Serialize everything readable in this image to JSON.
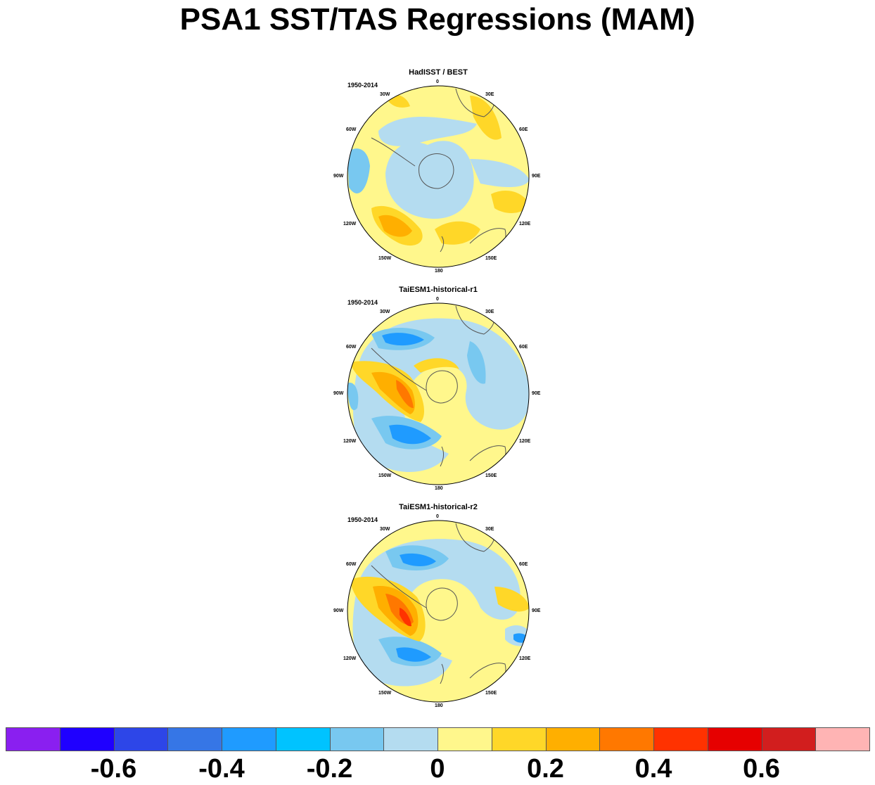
{
  "title": "PSA1 SST/TAS Regressions (MAM)",
  "panels": [
    {
      "title": "HadISST / BEST",
      "period": "1950-2014"
    },
    {
      "title": "TaiESM1-historical-r1",
      "period": "1950-2014"
    },
    {
      "title": "TaiESM1-historical-r2",
      "period": "1950-2014"
    }
  ],
  "longitude_labels": [
    "0",
    "30E",
    "60E",
    "90E",
    "120E",
    "150E",
    "180",
    "150W",
    "120W",
    "90W",
    "60W",
    "30W"
  ],
  "colorbar": {
    "colors": [
      "#8a1ff0",
      "#1f00ff",
      "#2d46e8",
      "#3676e6",
      "#1f9bff",
      "#00c3ff",
      "#78c8f0",
      "#b4dcf0",
      "#fff78c",
      "#ffd728",
      "#ffaf00",
      "#ff7800",
      "#ff3200",
      "#e60000",
      "#d21e1e",
      "#ffb4b4"
    ],
    "tick_labels": [
      "-0.6",
      "-0.4",
      "-0.2",
      "0",
      "0.2",
      "0.4",
      "0.6"
    ]
  }
}
